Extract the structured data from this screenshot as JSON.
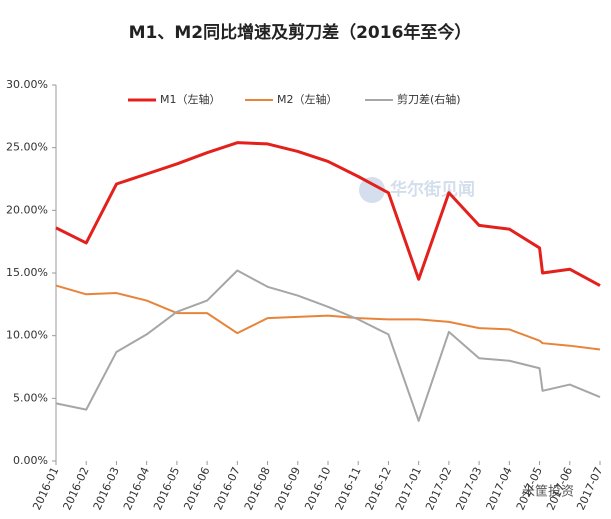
{
  "chart_data": {
    "type": "line",
    "title": "M1、M2同比增速及剪刀差（2016年至今）",
    "categories": [
      "2016-01",
      "2016-02",
      "2016-03",
      "2016-04",
      "2016-05",
      "2016-06",
      "2016-07",
      "2016-08",
      "2016-09",
      "2016-10",
      "2016-11",
      "2016-12",
      "2017-01",
      "2017-02",
      "2017-03",
      "2017-04",
      "2017-05",
      null,
      "2017-06",
      "2017-07"
    ],
    "series": [
      {
        "name": "M1（左轴）",
        "color": "#e3201b",
        "values": [
          18.6,
          17.4,
          22.1,
          22.9,
          23.7,
          24.6,
          25.4,
          25.3,
          24.7,
          23.9,
          22.7,
          21.4,
          14.5,
          21.4,
          18.8,
          18.5,
          17.0,
          15.0,
          15.3,
          14.0
        ]
      },
      {
        "name": "M2（左轴）",
        "color": "#e8843a",
        "values": [
          14.0,
          13.3,
          13.4,
          12.8,
          11.8,
          11.8,
          10.2,
          11.4,
          11.5,
          11.6,
          11.4,
          11.3,
          11.3,
          11.1,
          10.6,
          10.5,
          9.6,
          9.4,
          9.2,
          8.9
        ]
      },
      {
        "name": "剪刀差(右轴)",
        "color": "#a6a6a6",
        "values": [
          4.6,
          4.1,
          8.7,
          10.1,
          11.9,
          12.8,
          15.2,
          13.9,
          13.2,
          12.3,
          11.3,
          10.1,
          3.2,
          10.3,
          8.2,
          8.0,
          7.4,
          5.6,
          6.1,
          5.1
        ]
      }
    ],
    "ylim": [
      0,
      30
    ],
    "yticks": [
      {
        "value": 0,
        "label": "0.00%"
      },
      {
        "value": 5,
        "label": "5.00%"
      },
      {
        "value": 10,
        "label": "10.00%"
      },
      {
        "value": 15,
        "label": "15.00%"
      },
      {
        "value": 20,
        "label": "20.00%"
      },
      {
        "value": 25,
        "label": "25.00%"
      },
      {
        "value": 30,
        "label": "30.00%"
      }
    ],
    "legend": "top",
    "watermarks": [
      "华尔街见闻",
      "米筐投资"
    ]
  }
}
